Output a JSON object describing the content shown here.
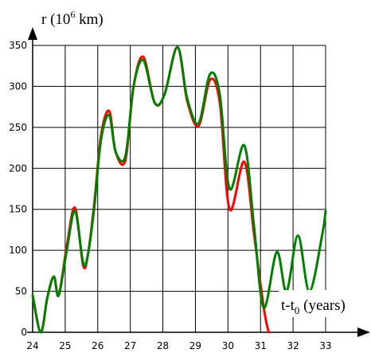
{
  "chart_data": {
    "type": "line",
    "ylabel": {
      "base": "r (10",
      "exp": "6",
      "unit": " km)"
    },
    "xlabel": {
      "base": "t-t",
      "sub": "0",
      "unit": " (years)"
    },
    "xlim": [
      24,
      33
    ],
    "ylim": [
      0,
      350
    ],
    "x_ticks": [
      "24",
      "25",
      "26",
      "27",
      "28",
      "29",
      "30",
      "31",
      "32",
      "33"
    ],
    "y_ticks": [
      "0",
      "50",
      "100",
      "150",
      "200",
      "250",
      "300",
      "350"
    ],
    "grid": true,
    "series": [
      {
        "color": "#008000",
        "x": [
          24.0,
          24.25,
          24.45,
          24.65,
          24.8,
          25.05,
          25.3,
          25.55,
          25.7,
          25.9,
          26.1,
          26.35,
          26.55,
          26.85,
          27.1,
          27.4,
          27.75,
          28.05,
          28.45,
          28.75,
          29.1,
          29.45,
          29.75,
          30.05,
          30.5,
          30.8,
          31.1,
          31.5,
          31.8,
          32.15,
          32.5,
          32.9,
          33.0
        ],
        "y": [
          45,
          0,
          42,
          68,
          45,
          100,
          148,
          85,
          95,
          155,
          235,
          265,
          220,
          215,
          300,
          332,
          280,
          290,
          348,
          285,
          255,
          315,
          290,
          175,
          228,
          130,
          30,
          98,
          50,
          118,
          50,
          120,
          148
        ]
      },
      {
        "color": "#ff0000",
        "x": [
          24.0,
          24.25,
          24.45,
          24.65,
          24.8,
          25.05,
          25.3,
          25.55,
          25.7,
          25.9,
          26.1,
          26.35,
          26.55,
          26.85,
          27.1,
          27.4,
          27.75,
          28.05,
          28.45,
          28.75,
          29.1,
          29.45,
          29.75,
          30.05,
          30.5,
          30.8,
          31.1,
          31.25
        ],
        "y": [
          45,
          0,
          42,
          68,
          45,
          105,
          152,
          82,
          95,
          160,
          240,
          270,
          220,
          210,
          300,
          336,
          280,
          290,
          348,
          282,
          252,
          308,
          280,
          150,
          208,
          120,
          30,
          0
        ]
      }
    ]
  }
}
